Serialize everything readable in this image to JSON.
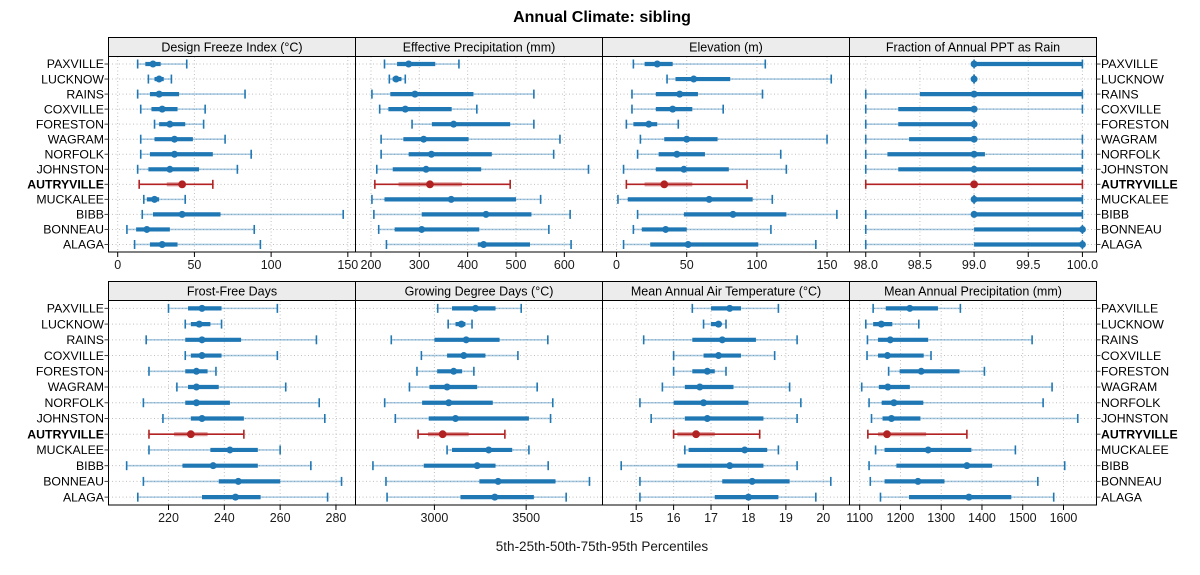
{
  "title": "Annual Climate: sibling",
  "xlabel": "5th-25th-50th-75th-95th Percentiles",
  "colors": {
    "series": "#1f77b4",
    "series_light": "rgba(31,119,180,0.38)",
    "highlight": "#b22222",
    "highlight_light": "rgba(178,34,34,0.45)",
    "strip_bg": "#ececec",
    "panel_border": "#000000",
    "grid": "#c0c0c0",
    "tick": "#444444",
    "text": "#000000"
  },
  "sites": [
    "PAXVILLE",
    "LUCKNOW",
    "RAINS",
    "COXVILLE",
    "FORESTON",
    "WAGRAM",
    "NORFOLK",
    "JOHNSTON",
    "AUTRYVILLE",
    "MUCKALEE",
    "BIBB",
    "BONNEAU",
    "ALAGA"
  ],
  "highlight_site": "AUTRYVILLE",
  "chart_data": {
    "type": "dotplot-percentiles",
    "percentiles": [
      5,
      25,
      50,
      75,
      95
    ],
    "layout": {
      "rows": 2,
      "cols": 4,
      "grid": "dotted",
      "legend": "none"
    },
    "panels": [
      {
        "title": "Design Freeze Index (°C)",
        "row": 0,
        "col": 0,
        "xlim": [
          -6,
          155
        ],
        "ticks": [
          0,
          50,
          100,
          150
        ],
        "tick_labels": [
          "0",
          "50",
          "100",
          "150"
        ],
        "values": [
          [
            13,
            18,
            23,
            28,
            45
          ],
          [
            20,
            24,
            27,
            30,
            35
          ],
          [
            13,
            21,
            27,
            40,
            83
          ],
          [
            15,
            22,
            29,
            39,
            57
          ],
          [
            24,
            27,
            34,
            44,
            56
          ],
          [
            15,
            24,
            37,
            49,
            70
          ],
          [
            15,
            21,
            37,
            62,
            87
          ],
          [
            13,
            20,
            34,
            53,
            78
          ],
          [
            14,
            32,
            42,
            44,
            62
          ],
          [
            17,
            19,
            24,
            27,
            44
          ],
          [
            16,
            23,
            42,
            67,
            147
          ],
          [
            6,
            12,
            19,
            34,
            89
          ],
          [
            11,
            21,
            29,
            39,
            93
          ]
        ]
      },
      {
        "title": "Effective Precipitation (mm)",
        "row": 0,
        "col": 1,
        "xlim": [
          168,
          679
        ],
        "ticks": [
          200,
          300,
          400,
          500,
          600
        ],
        "tick_labels": [
          "200",
          "300",
          "400",
          "500",
          "600"
        ],
        "values": [
          [
            228,
            254,
            278,
            333,
            382
          ],
          [
            238,
            245,
            252,
            263,
            271
          ],
          [
            202,
            240,
            291,
            412,
            537
          ],
          [
            218,
            236,
            271,
            367,
            419
          ],
          [
            285,
            326,
            371,
            488,
            537
          ],
          [
            221,
            267,
            309,
            402,
            591
          ],
          [
            221,
            278,
            325,
            450,
            578
          ],
          [
            212,
            245,
            314,
            428,
            650
          ],
          [
            208,
            257,
            322,
            388,
            488
          ],
          [
            202,
            228,
            366,
            500,
            551
          ],
          [
            206,
            305,
            438,
            532,
            612
          ],
          [
            216,
            249,
            305,
            424,
            568
          ],
          [
            232,
            421,
            433,
            529,
            614
          ]
        ]
      },
      {
        "title": "Elevation (m)",
        "row": 0,
        "col": 2,
        "xlim": [
          -10,
          166
        ],
        "ticks": [
          0,
          50,
          100,
          150
        ],
        "tick_labels": [
          "0",
          "50",
          "100",
          "150"
        ],
        "values": [
          [
            12,
            20,
            29,
            40,
            106
          ],
          [
            36,
            42,
            55,
            81,
            153
          ],
          [
            11,
            28,
            45,
            58,
            104
          ],
          [
            11,
            28,
            40,
            54,
            76
          ],
          [
            7,
            12,
            23,
            29,
            44
          ],
          [
            17,
            34,
            50,
            72,
            150
          ],
          [
            15,
            30,
            43,
            63,
            117
          ],
          [
            5,
            28,
            48,
            80,
            121
          ],
          [
            7,
            20,
            34,
            54,
            93
          ],
          [
            1,
            8,
            66,
            97,
            111
          ],
          [
            15,
            48,
            83,
            121,
            157
          ],
          [
            12,
            18,
            35,
            50,
            110
          ],
          [
            5,
            24,
            51,
            101,
            142
          ]
        ]
      },
      {
        "title": "Fraction of Annual PPT as Rain",
        "row": 0,
        "col": 3,
        "xlim": [
          97.85,
          100.13
        ],
        "ticks": [
          98.0,
          98.5,
          99.0,
          99.5,
          100.0
        ],
        "tick_labels": [
          "98.0",
          "98.5",
          "99.0",
          "99.5",
          "100.0"
        ],
        "values": [
          [
            99,
            99,
            99,
            100,
            100
          ],
          [
            99,
            99,
            99,
            99,
            99
          ],
          [
            98,
            98.5,
            99,
            100,
            100
          ],
          [
            98,
            98.3,
            99,
            99,
            100
          ],
          [
            98,
            98.3,
            99,
            99,
            99
          ],
          [
            98,
            98.4,
            99,
            99,
            100
          ],
          [
            98,
            98.2,
            99,
            99.1,
            100
          ],
          [
            98,
            98.3,
            99,
            100,
            100
          ],
          [
            98,
            99,
            99,
            99,
            100
          ],
          [
            99,
            99,
            99,
            100,
            100
          ],
          [
            98,
            99,
            99,
            100,
            100
          ],
          [
            98,
            99,
            100,
            100,
            100
          ],
          [
            98,
            99,
            100,
            100,
            100
          ]
        ]
      },
      {
        "title": "Frost-Free Days",
        "row": 1,
        "col": 0,
        "xlim": [
          198.5,
          287
        ],
        "ticks": [
          220,
          240,
          260,
          280
        ],
        "tick_labels": [
          "220",
          "240",
          "260",
          "280"
        ],
        "values": [
          [
            220,
            227,
            232,
            239,
            259
          ],
          [
            226,
            228,
            231,
            235,
            239
          ],
          [
            212,
            226,
            232,
            246,
            273
          ],
          [
            226,
            228,
            232,
            239,
            259
          ],
          [
            213,
            226,
            230,
            234,
            237
          ],
          [
            223,
            227,
            230,
            238,
            262
          ],
          [
            211,
            226,
            230,
            242,
            274
          ],
          [
            218,
            228,
            232,
            247,
            276
          ],
          [
            213,
            222,
            228,
            234,
            247
          ],
          [
            213,
            235,
            242,
            252,
            260
          ],
          [
            205,
            225,
            236,
            252,
            271
          ],
          [
            211,
            238,
            245,
            260,
            282
          ],
          [
            209,
            232,
            244,
            253,
            277
          ]
        ]
      },
      {
        "title": "Growing Degree Days (°C)",
        "row": 1,
        "col": 1,
        "xlim": [
          2570,
          3916
        ],
        "ticks": [
          3000,
          3500
        ],
        "tick_labels": [
          "3000",
          "3500"
        ],
        "values": [
          [
            3018,
            3096,
            3224,
            3333,
            3473
          ],
          [
            3075,
            3115,
            3147,
            3169,
            3205
          ],
          [
            2765,
            3000,
            3173,
            3355,
            3618
          ],
          [
            2929,
            3069,
            3160,
            3278,
            3455
          ],
          [
            2905,
            3015,
            3105,
            3151,
            3215
          ],
          [
            2864,
            2973,
            3069,
            3233,
            3560
          ],
          [
            2729,
            2933,
            3078,
            3318,
            3645
          ],
          [
            2787,
            2969,
            3115,
            3515,
            3633
          ],
          [
            2911,
            2965,
            3045,
            3187,
            3384
          ],
          [
            3069,
            3096,
            3296,
            3424,
            3515
          ],
          [
            2665,
            2942,
            3233,
            3333,
            3620
          ],
          [
            2736,
            3245,
            3347,
            3660,
            3845
          ],
          [
            2742,
            3142,
            3329,
            3542,
            3718
          ]
        ]
      },
      {
        "title": "Mean Annual Air Temperature (°C)",
        "row": 1,
        "col": 2,
        "xlim": [
          14.1,
          20.7
        ],
        "ticks": [
          15,
          16,
          17,
          18,
          19,
          20
        ],
        "tick_labels": [
          "15",
          "16",
          "17",
          "18",
          "19",
          "20"
        ],
        "values": [
          [
            16.5,
            17.0,
            17.5,
            17.8,
            18.8
          ],
          [
            16.8,
            17.0,
            17.2,
            17.2,
            17.4
          ],
          [
            15.2,
            16.5,
            17.3,
            18.2,
            19.3
          ],
          [
            16.0,
            16.8,
            17.2,
            17.8,
            18.7
          ],
          [
            16.0,
            16.5,
            16.9,
            17.1,
            17.4
          ],
          [
            15.7,
            16.3,
            16.7,
            17.6,
            19.1
          ],
          [
            15.1,
            16.0,
            16.8,
            18.0,
            19.4
          ],
          [
            15.4,
            16.3,
            16.9,
            18.4,
            19.3
          ],
          [
            16.0,
            16.1,
            16.6,
            17.1,
            18.3
          ],
          [
            16.3,
            16.4,
            17.9,
            18.5,
            18.8
          ],
          [
            14.6,
            16.1,
            17.5,
            18.4,
            19.3
          ],
          [
            15.1,
            17.3,
            18.1,
            19.1,
            20.2
          ],
          [
            15.1,
            17.1,
            18.0,
            18.8,
            19.8
          ]
        ]
      },
      {
        "title": "Mean Annual Precipitation (mm)",
        "row": 1,
        "col": 3,
        "xlim": [
          1075,
          1681
        ],
        "ticks": [
          1100,
          1200,
          1300,
          1400,
          1500,
          1600
        ],
        "tick_labels": [
          "1100",
          "1200",
          "1300",
          "1400",
          "1500",
          "1600"
        ],
        "values": [
          [
            1133,
            1164,
            1223,
            1292,
            1347
          ],
          [
            1115,
            1133,
            1153,
            1180,
            1245
          ],
          [
            1119,
            1145,
            1175,
            1268,
            1523
          ],
          [
            1118,
            1145,
            1168,
            1257,
            1275
          ],
          [
            1171,
            1198,
            1251,
            1345,
            1406
          ],
          [
            1105,
            1147,
            1169,
            1223,
            1572
          ],
          [
            1123,
            1154,
            1184,
            1256,
            1550
          ],
          [
            1129,
            1156,
            1178,
            1249,
            1635
          ],
          [
            1120,
            1145,
            1167,
            1263,
            1363
          ],
          [
            1139,
            1161,
            1268,
            1374,
            1482
          ],
          [
            1123,
            1190,
            1363,
            1425,
            1603
          ],
          [
            1126,
            1161,
            1243,
            1308,
            1537
          ],
          [
            1151,
            1221,
            1368,
            1472,
            1576
          ]
        ]
      }
    ]
  }
}
